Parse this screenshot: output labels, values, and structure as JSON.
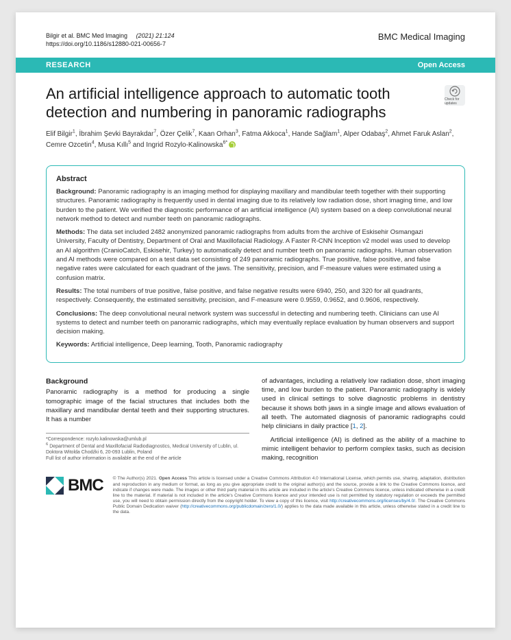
{
  "header": {
    "citation_authors": "Bilgir et al. BMC Med Imaging",
    "citation_issue": "(2021) 21:124",
    "doi": "https://doi.org/10.1186/s12880-021-00656-7",
    "journal": "BMC Medical Imaging"
  },
  "ribbon": {
    "category": "RESEARCH",
    "access": "Open Access"
  },
  "title": "An artificial intelligence approach to automatic tooth detection and numbering in panoramic radiographs",
  "update_badge": {
    "label": "Check for updates"
  },
  "authors_html": "Elif Bilgir<sup>1</sup>, İbrahim Şevki Bayrakdar<sup>7</sup>, Özer Çelik<sup>7</sup>, Kaan Orhan<sup>3</sup>, Fatma Akkoca<sup>1</sup>, Hande Sağlam<sup>1</sup>, Alper Odabaş<sup>2</sup>, Ahmet Faruk Aslan<sup>2</sup>, Cemre Ozcetin<sup>4</sup>, Musa Kıllı<sup>5</sup> and Ingrid Rozylo-Kalinowska<sup>6*</sup>",
  "abstract": {
    "heading": "Abstract",
    "background_label": "Background:",
    "background": "Panoramic radiography is an imaging method for displaying maxillary and mandibular teeth together with their supporting structures. Panoramic radiography is frequently used in dental imaging due to its relatively low radiation dose, short imaging time, and low burden to the patient. We verified the diagnostic performance of an artificial intelligence (AI) system based on a deep convolutional neural network method to detect and number teeth on panoramic radiographs.",
    "methods_label": "Methods:",
    "methods": "The data set included 2482 anonymized panoramic radiographs from adults from the archive of Eskisehir Osmangazi University, Faculty of Dentistry, Department of Oral and Maxillofacial Radiology. A Faster R-CNN Inception v2 model was used to develop an AI algorithm (CranioCatch, Eskisehir, Turkey) to automatically detect and number teeth on panoramic radiographs. Human observation and AI methods were compared on a test data set consisting of 249 panoramic radiographs. True positive, false positive, and false negative rates were calculated for each quadrant of the jaws. The sensitivity, precision, and F-measure values were estimated using a confusion matrix.",
    "results_label": "Results:",
    "results": "The total numbers of true positive, false positive, and false negative results were 6940, 250, and 320 for all quadrants, respectively. Consequently, the estimated sensitivity, precision, and F-measure were 0.9559, 0.9652, and 0.9606, respectively.",
    "conclusions_label": "Conclusions:",
    "conclusions": "The deep convolutional neural network system was successful in detecting and numbering teeth. Clinicians can use AI systems to detect and number teeth on panoramic radiographs, which may eventually replace evaluation by human observers and support decision making.",
    "keywords_label": "Keywords:",
    "keywords": "Artificial intelligence, Deep learning, Tooth, Panoramic radiography"
  },
  "body": {
    "heading": "Background",
    "col1": "Panoramic radiography is a method for producing a single tomographic image of the facial structures that includes both the maxillary and mandibular dental teeth and their supporting structures. It has a number",
    "col2a": "of advantages, including a relatively low radiation dose, short imaging time, and low burden to the patient. Panoramic radiography is widely used in clinical settings to solve diagnostic problems in dentistry because it shows both jaws in a single image and allows evaluation of all teeth. The automated diagnosis of panoramic radiographs could help clinicians in daily practice [",
    "ref1": "1",
    "refsep": ", ",
    "ref2": "2",
    "col2a_end": "].",
    "col2b": "Artificial intelligence (AI) is defined as the ability of a machine to mimic intelligent behavior to perform complex tasks, such as decision making, recognition"
  },
  "correspondence": {
    "line1": "*Correspondence: rozylo.kalinowska@umlub.pl",
    "line2_sup": "6",
    "line2": " Department of Dental and Maxillofacial Radiodiagnostics, Medical University of Lublin, ul. Doktora Witolda Chodźki 6, 20-093 Lublin, Poland",
    "line3": "Full list of author information is available at the end of the article"
  },
  "footer": {
    "logo_text": "BMC",
    "license_pre": "© The Author(s) 2021. ",
    "license_bold": "Open Access",
    "license_body": " This article is licensed under a Creative Commons Attribution 4.0 International License, which permits use, sharing, adaptation, distribution and reproduction in any medium or format, as long as you give appropriate credit to the original author(s) and the source, provide a link to the Creative Commons licence, and indicate if changes were made. The images or other third party material in this article are included in the article's Creative Commons licence, unless indicated otherwise in a credit line to the material. If material is not included in the article's Creative Commons licence and your intended use is not permitted by statutory regulation or exceeds the permitted use, you will need to obtain permission directly from the copyright holder. To view a copy of this licence, visit ",
    "license_link1": "http://creativecommons.org/licenses/by/4.0/",
    "license_body2": ". The Creative Commons Public Domain Dedication waiver (",
    "license_link2": "http://creativecommons.org/publicdomain/zero/1.0/",
    "license_body3": ") applies to the data made available in this article, unless otherwise stated in a credit line to the data."
  },
  "colors": {
    "ribbon": "#2bb9b5",
    "orcid": "#a6ce39",
    "link": "#1a6fb5",
    "bmc_dark": "#26324c",
    "bmc_teal": "#2bb9b5"
  }
}
